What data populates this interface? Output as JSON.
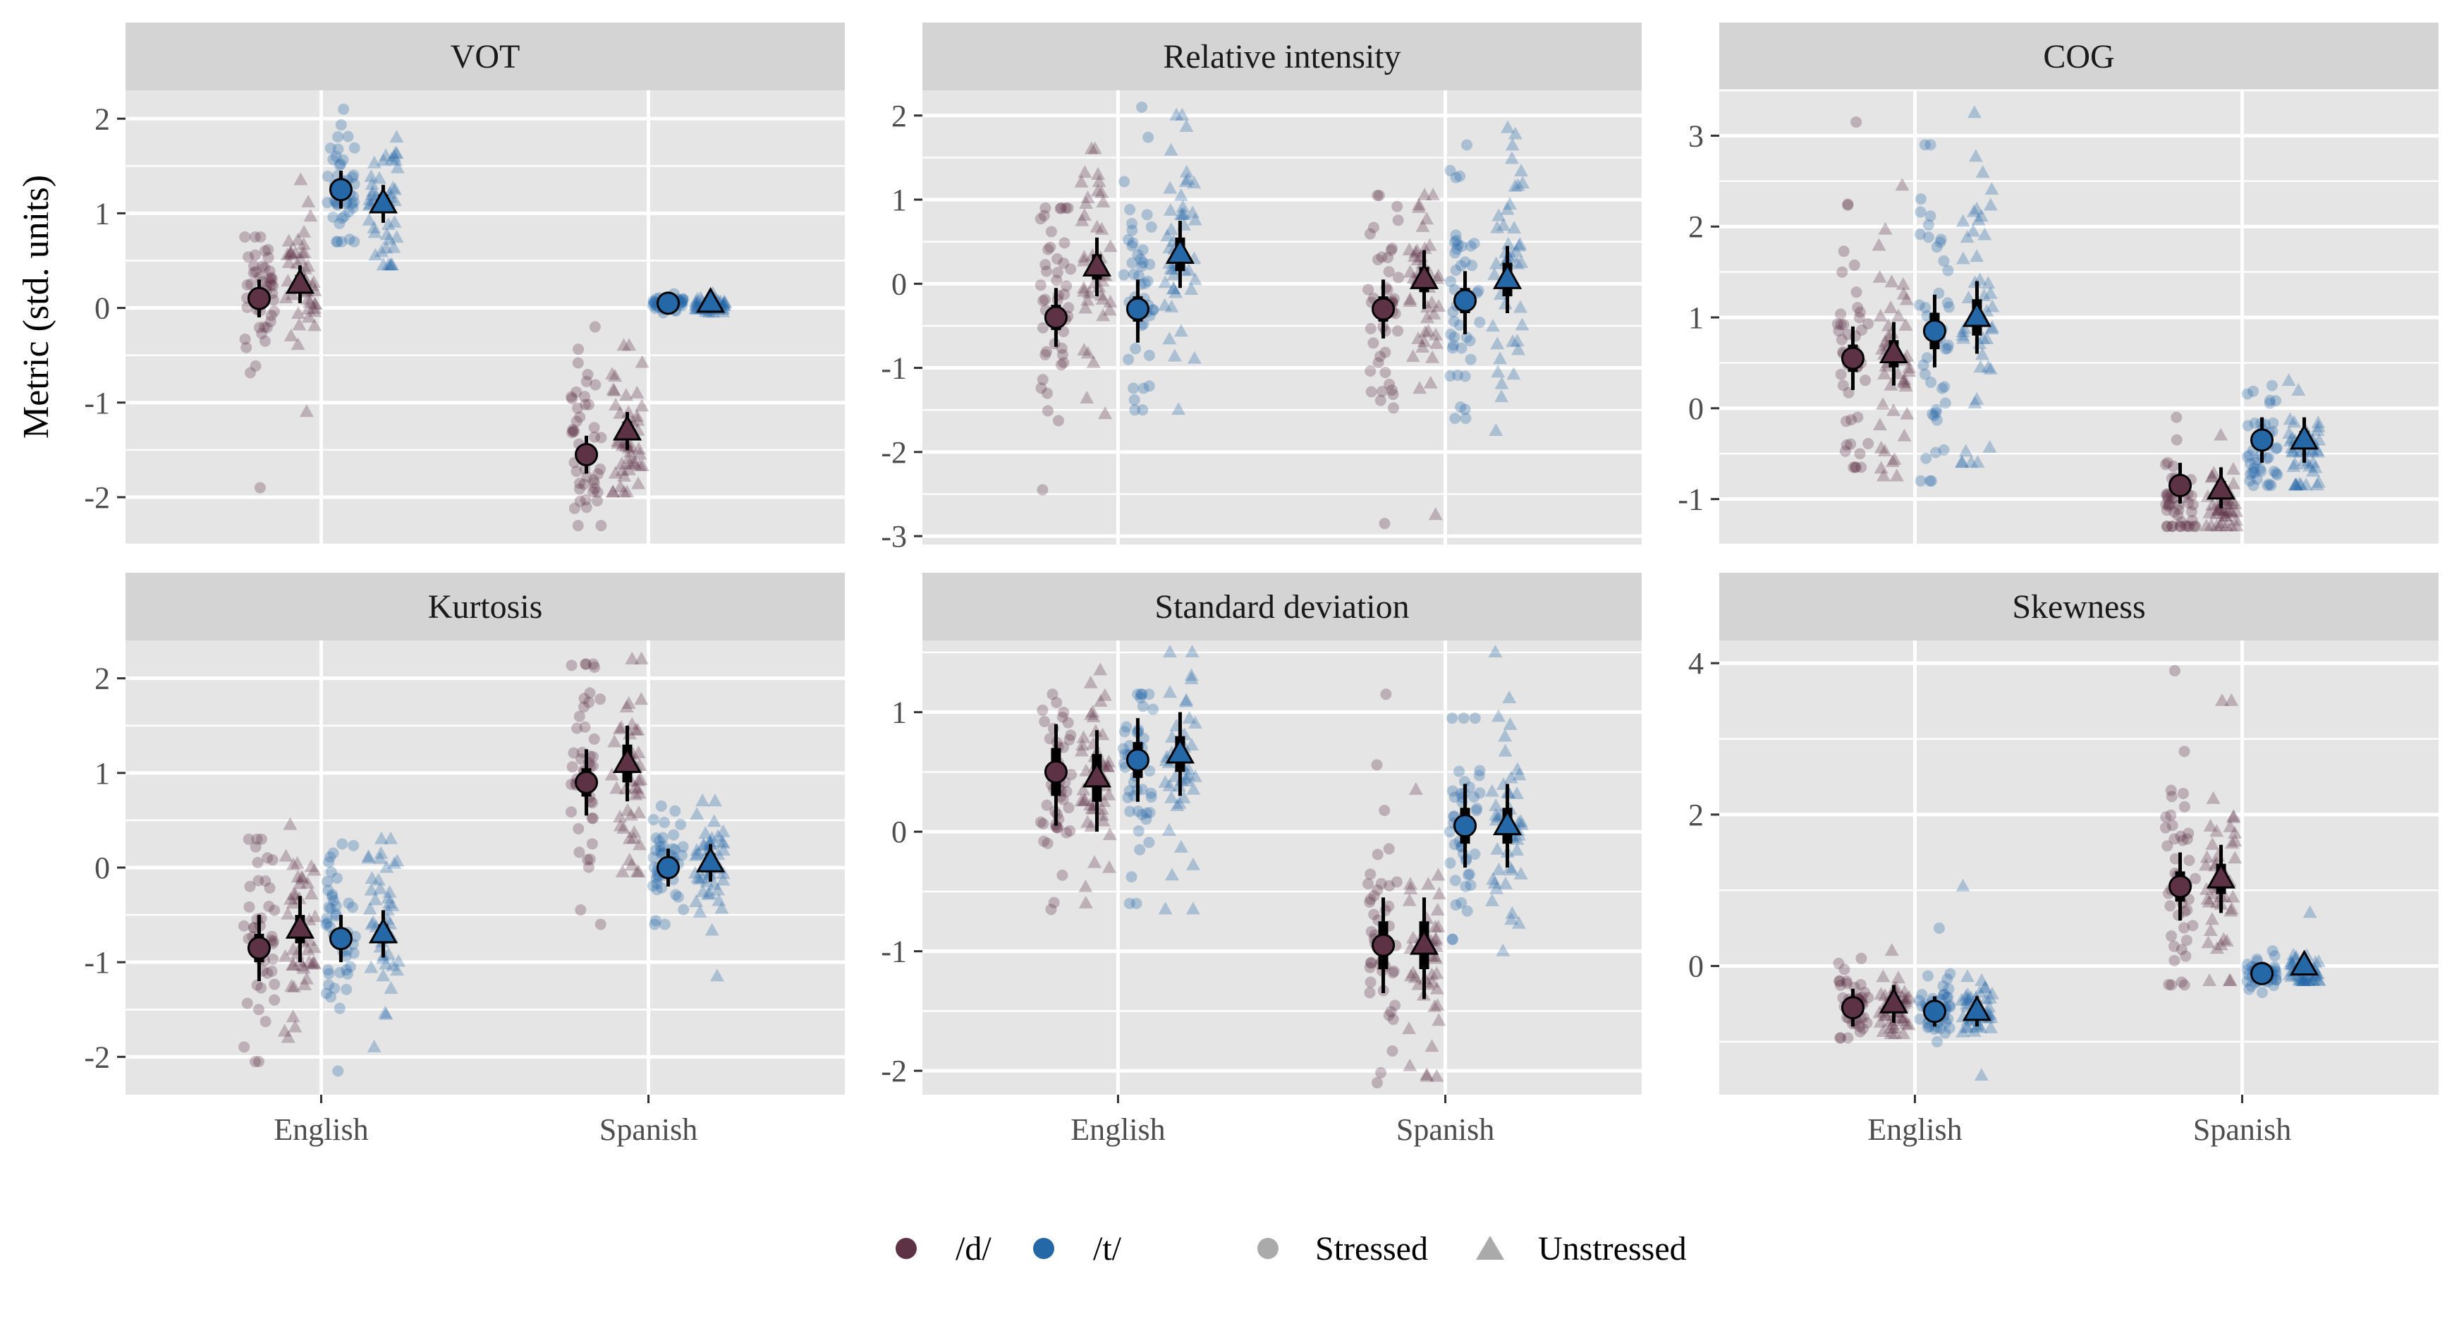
{
  "colors": {
    "d": "#5e3245",
    "t": "#2468a8",
    "stress_key": "#aaaaaa",
    "interval": "#000000"
  },
  "ylabel": "Metric (std. units)",
  "legend": {
    "color_items": [
      {
        "label": "/d/",
        "phoneme": "d"
      },
      {
        "label": "/t/",
        "phoneme": "t"
      }
    ],
    "shape_items": [
      {
        "label": "Stressed",
        "shape": "circle"
      },
      {
        "label": "Unstressed",
        "shape": "triangle"
      }
    ]
  },
  "chart_data": [
    {
      "type": "scatter",
      "title": "VOT",
      "ylim": [
        -2.5,
        2.3
      ],
      "yticks": [
        -2,
        -1,
        0,
        1,
        2
      ],
      "categories": [
        "English",
        "Spanish"
      ],
      "series": [
        {
          "phoneme": "d",
          "stress": "Stressed",
          "language": "English",
          "mean": 0.1,
          "lo66": 0.0,
          "hi66": 0.2,
          "lo95": -0.1,
          "hi95": 0.3,
          "raw_min": -1.9,
          "raw_max": 0.75,
          "raw_center": 0.1,
          "raw_sd": 0.35,
          "n": 45
        },
        {
          "phoneme": "d",
          "stress": "Unstressed",
          "language": "English",
          "mean": 0.25,
          "lo66": 0.15,
          "hi66": 0.35,
          "lo95": 0.05,
          "hi95": 0.45,
          "raw_min": -1.1,
          "raw_max": 1.35,
          "raw_center": 0.2,
          "raw_sd": 0.4,
          "n": 45
        },
        {
          "phoneme": "t",
          "stress": "Stressed",
          "language": "English",
          "mean": 1.25,
          "lo66": 1.15,
          "hi66": 1.35,
          "lo95": 1.05,
          "hi95": 1.45,
          "raw_min": 0.7,
          "raw_max": 2.1,
          "raw_center": 1.25,
          "raw_sd": 0.35,
          "n": 45
        },
        {
          "phoneme": "t",
          "stress": "Unstressed",
          "language": "English",
          "mean": 1.1,
          "lo66": 1.0,
          "hi66": 1.2,
          "lo95": 0.9,
          "hi95": 1.3,
          "raw_min": 0.45,
          "raw_max": 1.8,
          "raw_center": 1.1,
          "raw_sd": 0.35,
          "n": 45
        },
        {
          "phoneme": "d",
          "stress": "Stressed",
          "language": "Spanish",
          "mean": -1.55,
          "lo66": -1.65,
          "hi66": -1.45,
          "lo95": -1.75,
          "hi95": -1.35,
          "raw_min": -2.3,
          "raw_max": -0.2,
          "raw_center": -1.5,
          "raw_sd": 0.45,
          "n": 45
        },
        {
          "phoneme": "d",
          "stress": "Unstressed",
          "language": "Spanish",
          "mean": -1.3,
          "lo66": -1.4,
          "hi66": -1.2,
          "lo95": -1.5,
          "hi95": -1.1,
          "raw_min": -1.95,
          "raw_max": -0.4,
          "raw_center": -1.3,
          "raw_sd": 0.4,
          "n": 45
        },
        {
          "phoneme": "t",
          "stress": "Stressed",
          "language": "Spanish",
          "mean": 0.05,
          "lo66": 0.0,
          "hi66": 0.1,
          "lo95": -0.05,
          "hi95": 0.15,
          "raw_min": -0.05,
          "raw_max": 0.15,
          "raw_center": 0.05,
          "raw_sd": 0.04,
          "n": 45
        },
        {
          "phoneme": "t",
          "stress": "Unstressed",
          "language": "Spanish",
          "mean": 0.05,
          "lo66": 0.0,
          "hi66": 0.1,
          "lo95": -0.05,
          "hi95": 0.15,
          "raw_min": -0.05,
          "raw_max": 0.15,
          "raw_center": 0.03,
          "raw_sd": 0.04,
          "n": 45
        }
      ]
    },
    {
      "type": "scatter",
      "title": "Relative intensity",
      "ylim": [
        -3.1,
        2.3
      ],
      "yticks": [
        -3,
        -2,
        -1,
        0,
        1,
        2
      ],
      "categories": [
        "English",
        "Spanish"
      ],
      "series": [
        {
          "phoneme": "d",
          "stress": "Stressed",
          "language": "English",
          "mean": -0.4,
          "lo66": -0.55,
          "hi66": -0.25,
          "lo95": -0.75,
          "hi95": -0.05,
          "raw_min": -2.45,
          "raw_max": 0.9,
          "raw_center": -0.3,
          "raw_sd": 0.7,
          "n": 45
        },
        {
          "phoneme": "d",
          "stress": "Unstressed",
          "language": "English",
          "mean": 0.2,
          "lo66": 0.05,
          "hi66": 0.35,
          "lo95": -0.15,
          "hi95": 0.55,
          "raw_min": -1.55,
          "raw_max": 1.6,
          "raw_center": 0.2,
          "raw_sd": 0.6,
          "n": 45
        },
        {
          "phoneme": "t",
          "stress": "Stressed",
          "language": "English",
          "mean": -0.3,
          "lo66": -0.45,
          "hi66": -0.15,
          "lo95": -0.7,
          "hi95": 0.05,
          "raw_min": -1.5,
          "raw_max": 2.1,
          "raw_center": -0.3,
          "raw_sd": 0.7,
          "n": 45
        },
        {
          "phoneme": "t",
          "stress": "Unstressed",
          "language": "English",
          "mean": 0.35,
          "lo66": 0.15,
          "hi66": 0.55,
          "lo95": -0.05,
          "hi95": 0.75,
          "raw_min": -1.5,
          "raw_max": 2.0,
          "raw_center": 0.3,
          "raw_sd": 0.75,
          "n": 45
        },
        {
          "phoneme": "d",
          "stress": "Stressed",
          "language": "Spanish",
          "mean": -0.3,
          "lo66": -0.45,
          "hi66": -0.15,
          "lo95": -0.65,
          "hi95": 0.05,
          "raw_min": -2.85,
          "raw_max": 1.05,
          "raw_center": -0.2,
          "raw_sd": 0.65,
          "n": 45
        },
        {
          "phoneme": "d",
          "stress": "Unstressed",
          "language": "Spanish",
          "mean": 0.05,
          "lo66": -0.1,
          "hi66": 0.2,
          "lo95": -0.3,
          "hi95": 0.4,
          "raw_min": -2.75,
          "raw_max": 1.05,
          "raw_center": 0.0,
          "raw_sd": 0.6,
          "n": 45
        },
        {
          "phoneme": "t",
          "stress": "Stressed",
          "language": "Spanish",
          "mean": -0.2,
          "lo66": -0.35,
          "hi66": -0.05,
          "lo95": -0.6,
          "hi95": 0.15,
          "raw_min": -1.6,
          "raw_max": 1.65,
          "raw_center": -0.2,
          "raw_sd": 0.65,
          "n": 45
        },
        {
          "phoneme": "t",
          "stress": "Unstressed",
          "language": "Spanish",
          "mean": 0.05,
          "lo66": -0.15,
          "hi66": 0.25,
          "lo95": -0.35,
          "hi95": 0.45,
          "raw_min": -1.75,
          "raw_max": 1.85,
          "raw_center": 0.1,
          "raw_sd": 0.75,
          "n": 45
        }
      ]
    },
    {
      "type": "scatter",
      "title": "COG",
      "ylim": [
        -1.5,
        3.5
      ],
      "yticks": [
        -1,
        0,
        1,
        2,
        3
      ],
      "categories": [
        "English",
        "Spanish"
      ],
      "series": [
        {
          "phoneme": "d",
          "stress": "Stressed",
          "language": "English",
          "mean": 0.55,
          "lo66": 0.4,
          "hi66": 0.7,
          "lo95": 0.2,
          "hi95": 0.9,
          "raw_min": -0.65,
          "raw_max": 3.15,
          "raw_center": 0.5,
          "raw_sd": 0.75,
          "n": 45
        },
        {
          "phoneme": "d",
          "stress": "Unstressed",
          "language": "English",
          "mean": 0.6,
          "lo66": 0.45,
          "hi66": 0.75,
          "lo95": 0.25,
          "hi95": 0.95,
          "raw_min": -0.75,
          "raw_max": 2.45,
          "raw_center": 0.6,
          "raw_sd": 0.7,
          "n": 45
        },
        {
          "phoneme": "t",
          "stress": "Stressed",
          "language": "English",
          "mean": 0.85,
          "lo66": 0.65,
          "hi66": 1.05,
          "lo95": 0.45,
          "hi95": 1.25,
          "raw_min": -0.8,
          "raw_max": 2.9,
          "raw_center": 0.8,
          "raw_sd": 0.85,
          "n": 45
        },
        {
          "phoneme": "t",
          "stress": "Unstressed",
          "language": "English",
          "mean": 1.0,
          "lo66": 0.8,
          "hi66": 1.2,
          "lo95": 0.6,
          "hi95": 1.4,
          "raw_min": -0.6,
          "raw_max": 3.25,
          "raw_center": 1.0,
          "raw_sd": 0.85,
          "n": 45
        },
        {
          "phoneme": "d",
          "stress": "Stressed",
          "language": "Spanish",
          "mean": -0.85,
          "lo66": -0.95,
          "hi66": -0.75,
          "lo95": -1.05,
          "hi95": -0.6,
          "raw_min": -1.3,
          "raw_max": -0.1,
          "raw_center": -1.0,
          "raw_sd": 0.25,
          "n": 45
        },
        {
          "phoneme": "d",
          "stress": "Unstressed",
          "language": "Spanish",
          "mean": -0.9,
          "lo66": -1.0,
          "hi66": -0.8,
          "lo95": -1.1,
          "hi95": -0.65,
          "raw_min": -1.3,
          "raw_max": -0.3,
          "raw_center": -1.05,
          "raw_sd": 0.2,
          "n": 45
        },
        {
          "phoneme": "t",
          "stress": "Stressed",
          "language": "Spanish",
          "mean": -0.35,
          "lo66": -0.45,
          "hi66": -0.25,
          "lo95": -0.6,
          "hi95": -0.1,
          "raw_min": -0.85,
          "raw_max": 0.25,
          "raw_center": -0.45,
          "raw_sd": 0.25,
          "n": 45
        },
        {
          "phoneme": "t",
          "stress": "Unstressed",
          "language": "Spanish",
          "mean": -0.35,
          "lo66": -0.45,
          "hi66": -0.25,
          "lo95": -0.6,
          "hi95": -0.1,
          "raw_min": -0.85,
          "raw_max": 0.3,
          "raw_center": -0.5,
          "raw_sd": 0.25,
          "n": 45
        }
      ]
    },
    {
      "type": "scatter",
      "title": "Kurtosis",
      "ylim": [
        -2.4,
        2.4
      ],
      "yticks": [
        -2,
        -1,
        0,
        1,
        2
      ],
      "categories": [
        "English",
        "Spanish"
      ],
      "series": [
        {
          "phoneme": "d",
          "stress": "Stressed",
          "language": "English",
          "mean": -0.85,
          "lo66": -1.0,
          "hi66": -0.7,
          "lo95": -1.2,
          "hi95": -0.5,
          "raw_min": -2.05,
          "raw_max": 0.3,
          "raw_center": -0.7,
          "raw_sd": 0.5,
          "n": 45
        },
        {
          "phoneme": "d",
          "stress": "Unstressed",
          "language": "English",
          "mean": -0.65,
          "lo66": -0.8,
          "hi66": -0.5,
          "lo95": -1.0,
          "hi95": -0.3,
          "raw_min": -1.8,
          "raw_max": 0.45,
          "raw_center": -0.6,
          "raw_sd": 0.5,
          "n": 45
        },
        {
          "phoneme": "t",
          "stress": "Stressed",
          "language": "English",
          "mean": -0.75,
          "lo66": -0.85,
          "hi66": -0.65,
          "lo95": -1.0,
          "hi95": -0.5,
          "raw_min": -2.15,
          "raw_max": 0.25,
          "raw_center": -0.7,
          "raw_sd": 0.5,
          "n": 45
        },
        {
          "phoneme": "t",
          "stress": "Unstressed",
          "language": "English",
          "mean": -0.7,
          "lo66": -0.8,
          "hi66": -0.6,
          "lo95": -0.95,
          "hi95": -0.45,
          "raw_min": -1.9,
          "raw_max": 0.3,
          "raw_center": -0.7,
          "raw_sd": 0.5,
          "n": 45
        },
        {
          "phoneme": "d",
          "stress": "Stressed",
          "language": "Spanish",
          "mean": 0.9,
          "lo66": 0.75,
          "hi66": 1.05,
          "lo95": 0.55,
          "hi95": 1.25,
          "raw_min": -0.6,
          "raw_max": 2.15,
          "raw_center": 0.9,
          "raw_sd": 0.6,
          "n": 45
        },
        {
          "phoneme": "d",
          "stress": "Unstressed",
          "language": "Spanish",
          "mean": 1.1,
          "lo66": 0.9,
          "hi66": 1.3,
          "lo95": 0.7,
          "hi95": 1.5,
          "raw_min": -0.05,
          "raw_max": 2.2,
          "raw_center": 1.1,
          "raw_sd": 0.55,
          "n": 45
        },
        {
          "phoneme": "t",
          "stress": "Stressed",
          "language": "Spanish",
          "mean": 0.0,
          "lo66": -0.1,
          "hi66": 0.1,
          "lo95": -0.2,
          "hi95": 0.2,
          "raw_min": -0.6,
          "raw_max": 0.65,
          "raw_center": 0.05,
          "raw_sd": 0.3,
          "n": 45
        },
        {
          "phoneme": "t",
          "stress": "Unstressed",
          "language": "Spanish",
          "mean": 0.05,
          "lo66": -0.05,
          "hi66": 0.15,
          "lo95": -0.15,
          "hi95": 0.25,
          "raw_min": -1.15,
          "raw_max": 0.7,
          "raw_center": 0.1,
          "raw_sd": 0.35,
          "n": 45
        }
      ]
    },
    {
      "type": "scatter",
      "title": "Standard deviation",
      "ylim": [
        -2.2,
        1.6
      ],
      "yticks": [
        -2,
        -1,
        0,
        1
      ],
      "categories": [
        "English",
        "Spanish"
      ],
      "series": [
        {
          "phoneme": "d",
          "stress": "Stressed",
          "language": "English",
          "mean": 0.5,
          "lo66": 0.3,
          "hi66": 0.7,
          "lo95": 0.05,
          "hi95": 0.9,
          "raw_min": -0.65,
          "raw_max": 1.15,
          "raw_center": 0.4,
          "raw_sd": 0.4,
          "n": 45
        },
        {
          "phoneme": "d",
          "stress": "Unstressed",
          "language": "English",
          "mean": 0.45,
          "lo66": 0.25,
          "hi66": 0.65,
          "lo95": 0.0,
          "hi95": 0.85,
          "raw_min": -0.6,
          "raw_max": 1.35,
          "raw_center": 0.4,
          "raw_sd": 0.4,
          "n": 45
        },
        {
          "phoneme": "t",
          "stress": "Stressed",
          "language": "English",
          "mean": 0.6,
          "lo66": 0.45,
          "hi66": 0.75,
          "lo95": 0.25,
          "hi95": 0.95,
          "raw_min": -0.6,
          "raw_max": 1.15,
          "raw_center": 0.5,
          "raw_sd": 0.4,
          "n": 45
        },
        {
          "phoneme": "t",
          "stress": "Unstressed",
          "language": "English",
          "mean": 0.65,
          "lo66": 0.5,
          "hi66": 0.8,
          "lo95": 0.3,
          "hi95": 1.0,
          "raw_min": -0.65,
          "raw_max": 1.5,
          "raw_center": 0.6,
          "raw_sd": 0.45,
          "n": 45
        },
        {
          "phoneme": "d",
          "stress": "Stressed",
          "language": "Spanish",
          "mean": -0.95,
          "lo66": -1.15,
          "hi66": -0.75,
          "lo95": -1.35,
          "hi95": -0.55,
          "raw_min": -2.1,
          "raw_max": 1.15,
          "raw_center": -1.0,
          "raw_sd": 0.55,
          "n": 45
        },
        {
          "phoneme": "d",
          "stress": "Unstressed",
          "language": "Spanish",
          "mean": -0.95,
          "lo66": -1.15,
          "hi66": -0.75,
          "lo95": -1.4,
          "hi95": -0.55,
          "raw_min": -2.05,
          "raw_max": 0.35,
          "raw_center": -1.0,
          "raw_sd": 0.5,
          "n": 45
        },
        {
          "phoneme": "t",
          "stress": "Stressed",
          "language": "Spanish",
          "mean": 0.05,
          "lo66": -0.1,
          "hi66": 0.2,
          "lo95": -0.3,
          "hi95": 0.4,
          "raw_min": -0.9,
          "raw_max": 0.95,
          "raw_center": 0.0,
          "raw_sd": 0.4,
          "n": 45
        },
        {
          "phoneme": "t",
          "stress": "Unstressed",
          "language": "Spanish",
          "mean": 0.05,
          "lo66": -0.1,
          "hi66": 0.2,
          "lo95": -0.3,
          "hi95": 0.4,
          "raw_min": -1.0,
          "raw_max": 1.5,
          "raw_center": 0.0,
          "raw_sd": 0.45,
          "n": 45
        }
      ]
    },
    {
      "type": "scatter",
      "title": "Skewness",
      "ylim": [
        -1.7,
        4.3
      ],
      "yticks": [
        0,
        2,
        4
      ],
      "categories": [
        "English",
        "Spanish"
      ],
      "series": [
        {
          "phoneme": "d",
          "stress": "Stressed",
          "language": "English",
          "mean": -0.55,
          "lo66": -0.65,
          "hi66": -0.45,
          "lo95": -0.8,
          "hi95": -0.3,
          "raw_min": -0.95,
          "raw_max": 0.1,
          "raw_center": -0.5,
          "raw_sd": 0.2,
          "n": 45
        },
        {
          "phoneme": "d",
          "stress": "Unstressed",
          "language": "English",
          "mean": -0.5,
          "lo66": -0.6,
          "hi66": -0.4,
          "lo95": -0.75,
          "hi95": -0.25,
          "raw_min": -0.9,
          "raw_max": 0.2,
          "raw_center": -0.5,
          "raw_sd": 0.2,
          "n": 45
        },
        {
          "phoneme": "t",
          "stress": "Stressed",
          "language": "English",
          "mean": -0.6,
          "lo66": -0.7,
          "hi66": -0.5,
          "lo95": -0.8,
          "hi95": -0.4,
          "raw_min": -1.0,
          "raw_max": 0.5,
          "raw_center": -0.6,
          "raw_sd": 0.2,
          "n": 45
        },
        {
          "phoneme": "t",
          "stress": "Unstressed",
          "language": "English",
          "mean": -0.6,
          "lo66": -0.7,
          "hi66": -0.5,
          "lo95": -0.8,
          "hi95": -0.4,
          "raw_min": -1.45,
          "raw_max": 1.05,
          "raw_center": -0.6,
          "raw_sd": 0.2,
          "n": 45
        },
        {
          "phoneme": "d",
          "stress": "Stressed",
          "language": "Spanish",
          "mean": 1.05,
          "lo66": 0.85,
          "hi66": 1.25,
          "lo95": 0.6,
          "hi95": 1.5,
          "raw_min": -0.25,
          "raw_max": 3.9,
          "raw_center": 1.0,
          "raw_sd": 0.8,
          "n": 45
        },
        {
          "phoneme": "d",
          "stress": "Unstressed",
          "language": "Spanish",
          "mean": 1.15,
          "lo66": 0.95,
          "hi66": 1.35,
          "lo95": 0.7,
          "hi95": 1.6,
          "raw_min": -0.2,
          "raw_max": 3.5,
          "raw_center": 1.1,
          "raw_sd": 0.75,
          "n": 45
        },
        {
          "phoneme": "t",
          "stress": "Stressed",
          "language": "Spanish",
          "mean": -0.1,
          "lo66": -0.15,
          "hi66": -0.05,
          "lo95": -0.2,
          "hi95": 0.0,
          "raw_min": -0.35,
          "raw_max": 0.2,
          "raw_center": -0.1,
          "raw_sd": 0.1,
          "n": 45
        },
        {
          "phoneme": "t",
          "stress": "Unstressed",
          "language": "Spanish",
          "mean": 0.0,
          "lo66": -0.05,
          "hi66": 0.05,
          "lo95": -0.1,
          "hi95": 0.1,
          "raw_min": -0.2,
          "raw_max": 0.7,
          "raw_center": -0.05,
          "raw_sd": 0.12,
          "n": 45
        }
      ]
    }
  ]
}
